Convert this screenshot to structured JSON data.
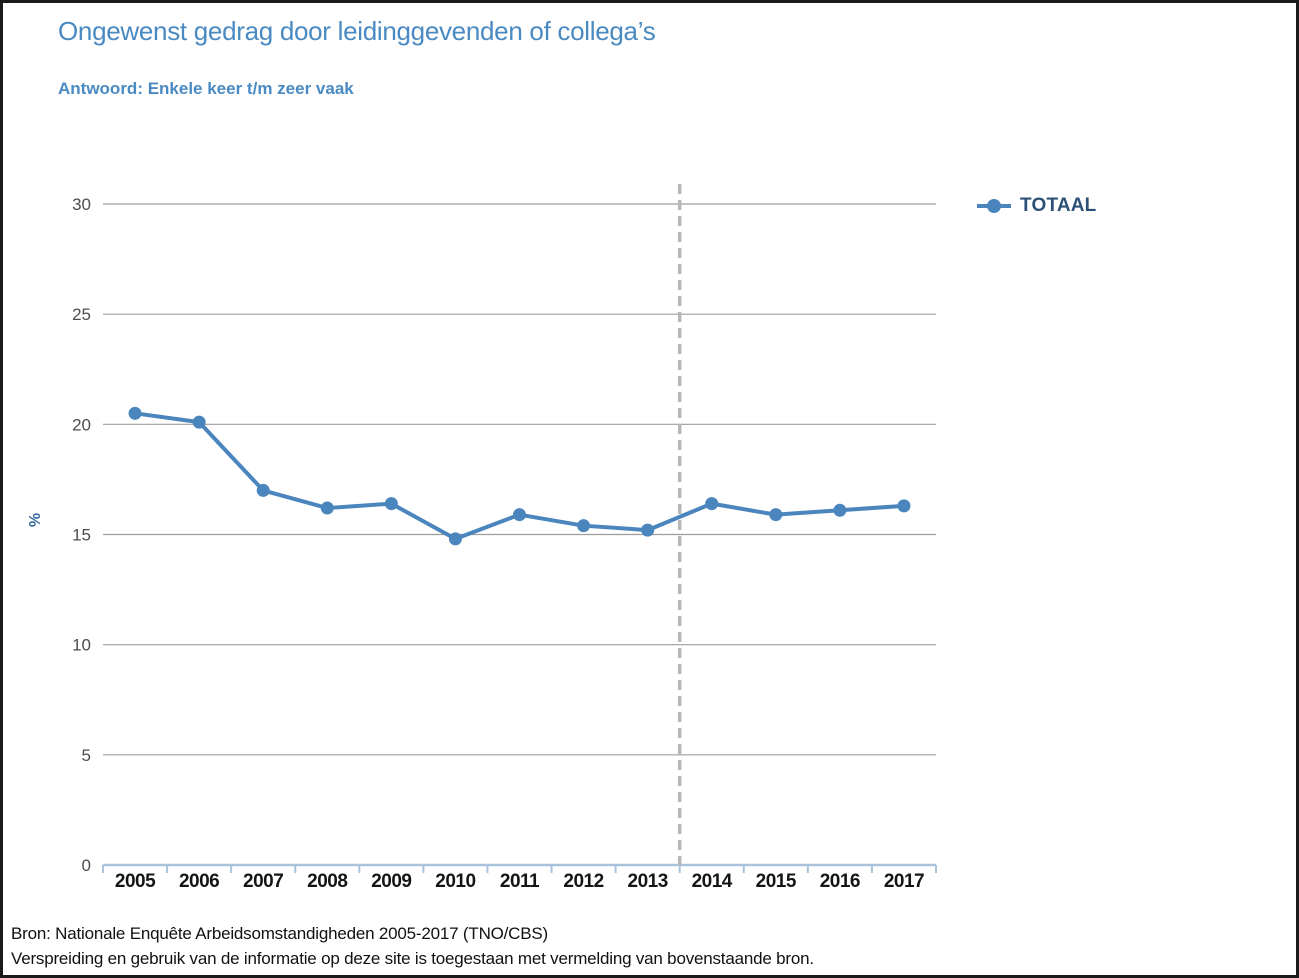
{
  "header": {
    "title": "Ongewenst gedrag door leidinggevenden of collega’s",
    "subtitle": "Antwoord: Enkele keer t/m zeer vaak"
  },
  "chart_data": {
    "type": "line",
    "title": "Ongewenst gedrag door leidinggevenden of collega’s",
    "subtitle": "Antwoord: Enkele keer t/m zeer vaak",
    "categories": [
      "2005",
      "2006",
      "2007",
      "2008",
      "2009",
      "2010",
      "2011",
      "2012",
      "2013",
      "2014",
      "2015",
      "2016",
      "2017"
    ],
    "series": [
      {
        "name": "TOTAAL",
        "values": [
          20.5,
          20.1,
          17.0,
          16.2,
          16.4,
          14.8,
          15.9,
          15.4,
          15.2,
          16.4,
          15.9,
          16.1,
          16.3
        ],
        "color": "#4a85bd"
      }
    ],
    "xlabel": "",
    "ylabel": "%",
    "ylim": [
      0,
      30
    ],
    "yticks": [
      0,
      5,
      10,
      15,
      20,
      25,
      30
    ],
    "grid": true,
    "legend_position": "top-right",
    "divider_after_category": "2013"
  },
  "legend": {
    "items": [
      {
        "label": "TOTAAL",
        "marker_color": "#4a85bd",
        "text_color": "#2d5176"
      }
    ]
  },
  "footer": {
    "line1": "Bron: Nationale Enquête Arbeidsomstandigheden 2005-2017 (TNO/CBS)",
    "line2": "Verspreiding en gebruik van de informatie op deze site is toegestaan met vermelding van bovenstaande bron."
  },
  "colors": {
    "title_blue": "#4a8ac2",
    "series_blue": "#4a85bd",
    "legend_text": "#2d5176",
    "gridline_gray": "#9d9d9d",
    "axis_light_blue": "#a9c3dc",
    "divider_gray": "#b7b7b7",
    "y_tick_label": "#4d4d4d",
    "x_tick_label": "#151515"
  }
}
